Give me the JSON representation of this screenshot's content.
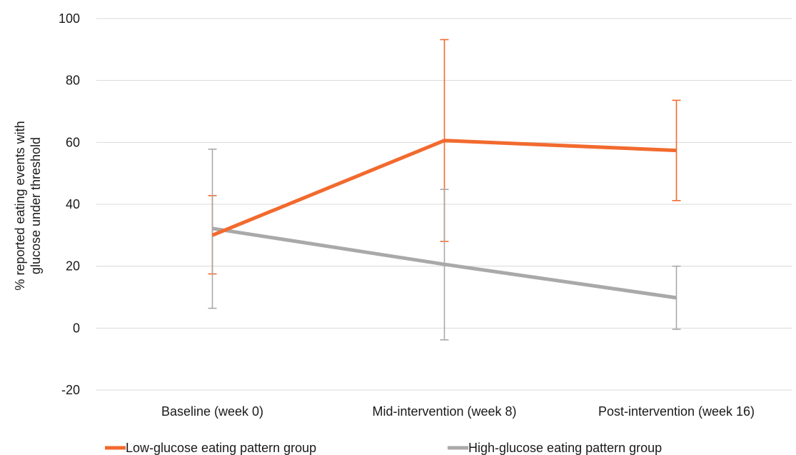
{
  "chart_data": {
    "type": "line",
    "categories": [
      "Baseline (week 0)",
      "Mid-intervention (week 8)",
      "Post-intervention (week 16)"
    ],
    "ylabel": [
      "% reported eating events with",
      "glucose under threshold"
    ],
    "xlabel": "",
    "ylim": [
      -20,
      100
    ],
    "yticks": [
      -20,
      0,
      20,
      40,
      60,
      80,
      100
    ],
    "grid": true,
    "legend_position": "bottom",
    "series": [
      {
        "name": "Low-glucose eating pattern group",
        "color": "#f26a2e",
        "values": [
          30,
          60.6,
          57.4
        ],
        "error_low": [
          17.5,
          28,
          41.2
        ],
        "error_high": [
          42.8,
          93.2,
          73.6
        ]
      },
      {
        "name": "High-glucose eating pattern group",
        "color": "#aaa9a9",
        "values": [
          32.2,
          20.6,
          9.8
        ],
        "error_low": [
          6.4,
          -3.8,
          -0.4
        ],
        "error_high": [
          57.8,
          44.8,
          20
        ]
      }
    ]
  }
}
